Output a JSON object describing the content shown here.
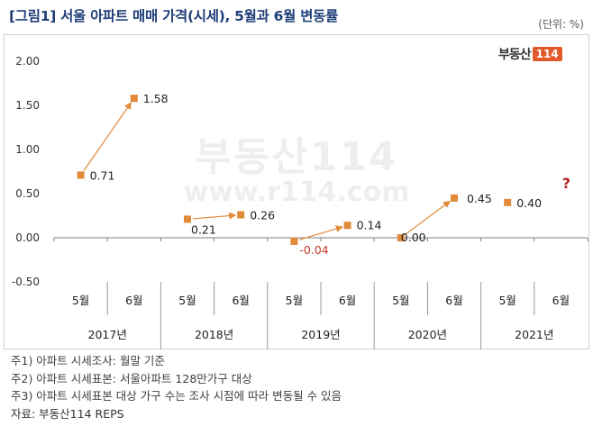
{
  "title": "[그림1] 서울 아파트 매매 가격(시세), 5월과 6월 변동률",
  "unit": "(단위: %)",
  "logo": {
    "text": "부동산",
    "number": "114"
  },
  "watermark": {
    "logo_text": "부동산114",
    "url": "www.r114.com"
  },
  "colors": {
    "title": "#1f3f78",
    "marker": "#e08a3a",
    "negative_label": "#c0392b",
    "question": "#b22222"
  },
  "chart_data": {
    "type": "scatter",
    "title": "서울 아파트 매매 가격(시세), 5월과 6월 변동률",
    "ylabel": "%",
    "ylim": [
      -0.5,
      2.0
    ],
    "yticks": [
      2.0,
      1.5,
      1.0,
      0.5,
      0.0,
      -0.5
    ],
    "ytick_labels": [
      "2.00",
      "1.50",
      "1.00",
      "0.50",
      "0.00",
      "-0.50"
    ],
    "months": [
      "5월",
      "6월"
    ],
    "years": [
      "2017년",
      "2018년",
      "2019년",
      "2020년",
      "2021년"
    ],
    "categories": [
      "2017 5월",
      "2017 6월",
      "2018 5월",
      "2018 6월",
      "2019 5월",
      "2019 6월",
      "2020 5월",
      "2020 6월",
      "2021 5월",
      "2021 6월"
    ],
    "values": [
      0.71,
      1.58,
      0.21,
      0.26,
      -0.04,
      0.14,
      0.0,
      0.45,
      0.4,
      null
    ],
    "value_labels": [
      "0.71",
      "1.58",
      "0.21",
      "0.26",
      "-0.04",
      "0.14",
      "0.00",
      "0.45",
      "0.40",
      "?"
    ],
    "arrows": [
      [
        0,
        1
      ],
      [
        2,
        3
      ],
      [
        4,
        5
      ],
      [
        6,
        7
      ]
    ]
  },
  "notes": [
    "주1) 아파트 시세조사: 월말 기준",
    "주2) 아파트 시세표본: 서울아파트 128만가구 대상",
    "주3) 아파트 시세표본 대상 가구 수는 조사 시점에 따라 변동될 수 있음"
  ],
  "source": "자료: 부동산114 REPS"
}
